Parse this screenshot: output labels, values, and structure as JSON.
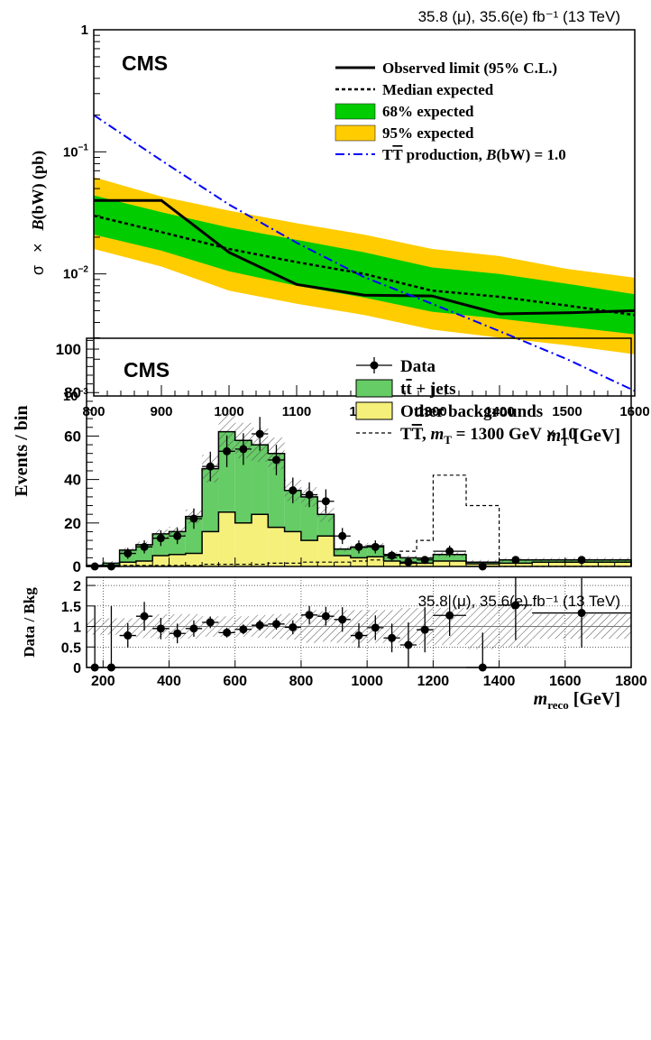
{
  "chart_data": [
    {
      "type": "line",
      "lumi": "35.8 (μ), 35.6(e) fb⁻¹ (13 TeV)",
      "experiment": "CMS",
      "xlabel": "m_T [GeV]",
      "xlabel_main": "m",
      "xlabel_sub": "T",
      "xlabel_unit": " [GeV]",
      "ylabel": "σ × B(bW) (pb)",
      "ylabel_parts": [
        "σ",
        "×",
        "B",
        "(bW) (pb)"
      ],
      "xlim": [
        800,
        1600
      ],
      "ylim": [
        0.001,
        1
      ],
      "ylog": true,
      "xticks": [
        800,
        900,
        1000,
        1100,
        1200,
        1300,
        1400,
        1500,
        1600
      ],
      "yticks": [
        {
          "value": 1,
          "label": "1",
          "base": "1",
          "exp": ""
        },
        {
          "value": 0.1,
          "label": "10^-1",
          "base": "10",
          "exp": "−1"
        },
        {
          "value": 0.01,
          "label": "10^-2",
          "base": "10",
          "exp": "−2"
        },
        {
          "value": 0.001,
          "label": "10^-3",
          "base": "10",
          "exp": "−3"
        }
      ],
      "x": [
        800,
        900,
        1000,
        1100,
        1200,
        1300,
        1400,
        1500,
        1600
      ],
      "series": [
        {
          "name": "Observed limit (95% C.L.)",
          "color": "#000000",
          "style": "solid",
          "values": [
            0.04,
            0.04,
            0.015,
            0.0082,
            0.0067,
            0.0066,
            0.0047,
            0.0048,
            0.005
          ]
        },
        {
          "name": "Median expected",
          "color": "#000000",
          "style": "dashed",
          "values": [
            0.03,
            0.022,
            0.016,
            0.0125,
            0.01,
            0.0073,
            0.0065,
            0.0055,
            0.0046
          ]
        },
        {
          "name": "TT̄ production, B(bW) = 1.0",
          "color": "#0000ff",
          "style": "dashdot",
          "values": [
            0.2,
            0.085,
            0.037,
            0.018,
            0.0094,
            0.0057,
            0.0034,
            0.002,
            0.0011
          ]
        }
      ],
      "bands": [
        {
          "name": "95% expected",
          "color": "#ffcc00",
          "lower": [
            0.016,
            0.0115,
            0.0073,
            0.0057,
            0.0046,
            0.0035,
            0.003,
            0.0026,
            0.0022
          ],
          "upper": [
            0.062,
            0.043,
            0.033,
            0.026,
            0.021,
            0.016,
            0.014,
            0.011,
            0.0093
          ]
        },
        {
          "name": "68% expected",
          "color": "#00cc00",
          "lower": [
            0.021,
            0.0155,
            0.0105,
            0.008,
            0.0064,
            0.0049,
            0.0043,
            0.0037,
            0.0032
          ],
          "upper": [
            0.044,
            0.032,
            0.024,
            0.019,
            0.015,
            0.0113,
            0.01,
            0.0083,
            0.0068
          ]
        }
      ],
      "legend": [
        {
          "label": "Observed limit (95% C.L.)",
          "kind": "line-solid",
          "color": "#000000"
        },
        {
          "label": "Median expected",
          "kind": "line-dashed",
          "color": "#000000"
        },
        {
          "label": "68% expected",
          "kind": "box",
          "color": "#00cc00"
        },
        {
          "label": "95% expected",
          "kind": "box",
          "color": "#ffcc00"
        },
        {
          "label": "TT̄ production, B(bW) = 1.0",
          "kind": "line-dashdot",
          "color": "#0000ff",
          "parts": [
            "T",
            "T",
            " production,  ",
            "B",
            "(bW) = 1.0"
          ]
        }
      ],
      "legend_position": "top-right"
    },
    {
      "type": "bar",
      "lumi": "35.8 (μ), 35.6(e) fb⁻¹ (13 TeV)",
      "experiment": "CMS",
      "xlabel": "m_reco [GeV]",
      "xlabel_main": "m",
      "xlabel_sub": "reco",
      "xlabel_unit": " [GeV]",
      "ylabel": "Events / bin",
      "ratio_ylabel": "Data / Bkg",
      "xlim": [
        150,
        1800
      ],
      "ylim": [
        0,
        105
      ],
      "ratio_ylim": [
        0,
        2.2
      ],
      "xticks": [
        200,
        400,
        600,
        800,
        1000,
        1200,
        1400,
        1600,
        1800
      ],
      "yticks": [
        0,
        20,
        40,
        60,
        80,
        100
      ],
      "ratio_yticks": [
        {
          "value": 0,
          "label": "0"
        },
        {
          "value": 0.5,
          "label": "0.5"
        },
        {
          "value": 1,
          "label": "1"
        },
        {
          "value": 1.5,
          "label": "1.5"
        },
        {
          "value": 2,
          "label": "2"
        }
      ],
      "bin_edges": [
        150,
        200,
        250,
        300,
        350,
        400,
        450,
        500,
        550,
        600,
        650,
        700,
        750,
        800,
        850,
        900,
        950,
        1000,
        1050,
        1100,
        1150,
        1200,
        1300,
        1400,
        1500,
        1800
      ],
      "series": [
        {
          "name": "Other backgrounds",
          "color": "#f5f07a",
          "values": [
            0.2,
            0.5,
            2,
            2.5,
            5,
            5.5,
            6,
            16,
            25,
            20,
            24,
            18,
            16,
            12,
            14,
            5,
            4,
            4.5,
            2.5,
            1.5,
            1.5,
            2.5,
            1.2,
            1.5,
            2
          ]
        },
        {
          "name": "tt̄ + jets",
          "color": "#66cc66",
          "values": [
            0.3,
            1.0,
            5.5,
            7.5,
            10,
            10.5,
            17,
            29,
            37,
            38,
            32,
            34,
            19,
            20,
            10,
            3,
            4.8,
            5.0,
            3.0,
            2.5,
            2.3,
            3.0,
            0.8,
            1.5,
            1.0
          ]
        }
      ],
      "signal": {
        "name": "TT̄, m_T = 1300 GeV × 10",
        "values": [
          0,
          0,
          0.5,
          0.5,
          0.5,
          0.5,
          0.5,
          1,
          1,
          1,
          1,
          1.5,
          1.5,
          2,
          2,
          2,
          2.5,
          3,
          4,
          7,
          12,
          42,
          28,
          0,
          0
        ]
      },
      "data": {
        "name": "Data",
        "x": [
          175,
          225,
          275,
          325,
          375,
          425,
          475,
          525,
          575,
          625,
          675,
          725,
          775,
          825,
          875,
          925,
          975,
          1025,
          1075,
          1125,
          1175,
          1250,
          1350,
          1450,
          1650
        ],
        "y": [
          0,
          0,
          6,
          9,
          13,
          14,
          22,
          46,
          53,
          54,
          61,
          49,
          35,
          33,
          30,
          14,
          9,
          9,
          5,
          2,
          3,
          7,
          0,
          3,
          3
        ],
        "yerr": [
          1.2,
          1.2,
          2.5,
          3,
          3.6,
          3.7,
          4.7,
          6.8,
          7.3,
          7.3,
          7.8,
          7.0,
          5.9,
          5.7,
          5.5,
          3.7,
          3,
          3,
          2.2,
          1.4,
          1.7,
          2.6,
          1.2,
          1.7,
          1.7
        ]
      },
      "ratio": {
        "x": [
          175,
          225,
          275,
          325,
          375,
          425,
          475,
          525,
          575,
          625,
          675,
          725,
          775,
          825,
          875,
          925,
          975,
          1025,
          1075,
          1125,
          1175,
          1250,
          1350,
          1450,
          1650
        ],
        "y": [
          0,
          0,
          0.78,
          1.25,
          0.95,
          0.83,
          0.95,
          1.1,
          0.85,
          0.93,
          1.03,
          1.06,
          0.98,
          1.28,
          1.25,
          1.17,
          0.78,
          0.97,
          0.72,
          0.55,
          0.92,
          1.27,
          0,
          1.52,
          1.33
        ],
        "yerr": [
          1.5,
          1.5,
          0.3,
          0.35,
          0.26,
          0.24,
          0.2,
          0.14,
          0.12,
          0.12,
          0.13,
          0.14,
          0.17,
          0.22,
          0.23,
          0.3,
          0.3,
          0.3,
          0.35,
          0.55,
          0.55,
          0.5,
          0.85,
          0.85,
          0.85
        ],
        "syst": [
          0.2,
          0.2,
          0.2,
          0.28,
          0.3,
          0.3,
          0.3,
          0.25,
          0.25,
          0.25,
          0.28,
          0.3,
          0.32,
          0.4,
          0.37,
          0.4,
          0.4,
          0.4,
          0.4,
          0.45,
          0.45,
          0.45,
          0.55,
          0.5,
          0.3
        ]
      },
      "legend": [
        {
          "label": "Data",
          "kind": "marker"
        },
        {
          "label": "tt̄ + jets",
          "kind": "box",
          "color": "#66cc66",
          "parts": [
            "t",
            "t",
            " + jets"
          ]
        },
        {
          "label": "Other backgrounds",
          "kind": "box",
          "color": "#f5f07a"
        },
        {
          "label": "TT̄, m_T = 1300 GeV × 10",
          "kind": "line-dashed",
          "color": "#000000",
          "parts": [
            "T",
            "T",
            ",  ",
            "m",
            "T",
            " = 1300 GeV  × 10"
          ]
        }
      ],
      "legend_position": "top-right"
    }
  ]
}
